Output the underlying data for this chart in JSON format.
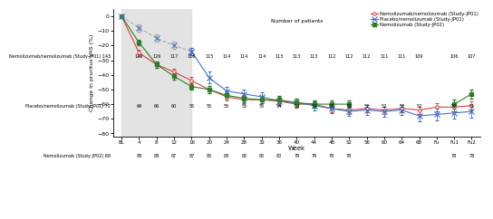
{
  "x_labels": [
    "BL",
    "4",
    "8",
    "12",
    "16",
    "20",
    "24",
    "28",
    "32",
    "36",
    "40",
    "44",
    "48",
    "52",
    "56",
    "60",
    "64",
    "68",
    "Fu",
    "Fu1",
    "Fu2"
  ],
  "x_numeric": [
    0,
    4,
    8,
    12,
    16,
    20,
    24,
    28,
    32,
    36,
    40,
    44,
    48,
    52,
    56,
    60,
    64,
    68,
    72,
    76,
    80
  ],
  "jp01_nemo": [
    0,
    -25,
    -33,
    -38,
    -44,
    -50,
    -55,
    -57,
    -57,
    -58,
    -60,
    -60,
    -63,
    -64,
    -63,
    -64,
    -63,
    -64,
    -62,
    -62,
    -61
  ],
  "jp01_nemo_err": [
    0.5,
    2.0,
    2.2,
    2.2,
    2.3,
    2.5,
    2.5,
    2.5,
    2.5,
    2.5,
    2.5,
    2.5,
    2.5,
    2.5,
    2.5,
    2.5,
    2.5,
    2.5,
    2.8,
    2.8,
    2.8
  ],
  "jp01_placebo": [
    0,
    -8,
    -15,
    -20,
    -24,
    -42,
    -51,
    -53,
    -55,
    -58,
    -59,
    -61,
    -63,
    -65,
    -64,
    -65,
    -64,
    -68,
    -67,
    -66,
    -65
  ],
  "jp01_placebo_err": [
    0.5,
    2.5,
    2.5,
    2.5,
    2.5,
    4.0,
    3.0,
    3.0,
    3.0,
    3.0,
    3.0,
    3.0,
    3.0,
    3.0,
    3.5,
    3.5,
    3.5,
    3.5,
    4.0,
    4.0,
    4.0
  ],
  "jp02_nemo": [
    0,
    -18,
    -33,
    -41,
    -48,
    -50,
    -54,
    -56,
    -57,
    -57,
    -59,
    -60,
    -60,
    -60,
    null,
    null,
    null,
    null,
    null,
    -60,
    -53
  ],
  "jp02_nemo_err": [
    0.5,
    2.0,
    2.0,
    2.0,
    2.2,
    2.5,
    2.5,
    2.5,
    2.5,
    2.5,
    2.5,
    2.5,
    2.5,
    2.5,
    null,
    null,
    null,
    null,
    null,
    3.0,
    3.0
  ],
  "placebo_dashed_y": [
    0,
    -8,
    -15,
    -20,
    -24
  ],
  "placebo_dashed_err": [
    0.5,
    2.5,
    2.5,
    2.5,
    2.5
  ],
  "placebo_dashed_x": [
    0,
    4,
    8,
    12,
    16
  ],
  "shaded_region": [
    0,
    16
  ],
  "color_jp01_nemo": "#d94040",
  "color_jp01_placebo": "#4472c4",
  "color_jp02_nemo": "#2e7d2e",
  "color_placebo_dashed": "#aaaaaa",
  "ylabel": "Change in pruritus VAS (%)",
  "xlabel": "Week",
  "ylim": [
    -82,
    5
  ],
  "yticks": [
    0,
    -10,
    -20,
    -30,
    -40,
    -50,
    -60,
    -70,
    -80
  ],
  "table_header": "Number of patients",
  "table_row1_label": "Nemolizumab/nemolizumab (Study-JP01)",
  "table_row2_label": "Placebo/nemolizumab (Study-JP01)",
  "table_row3_label": "Nemolizumab (Study-JP02)",
  "table_jp01_nemo": [
    "143",
    "136",
    "126",
    "117",
    "116",
    "115",
    "114",
    "114",
    "114",
    "113",
    "113",
    "113",
    "112",
    "112",
    "112",
    "111",
    "111",
    "109",
    "",
    "106",
    "107"
  ],
  "table_jp01_placebo": [
    "72",
    "69",
    "66",
    "60",
    "55",
    "55",
    "55",
    "55",
    "55",
    "54",
    "54",
    "54",
    "53",
    "52",
    "52",
    "52",
    "52",
    "52",
    "",
    "52",
    "51"
  ],
  "table_jp02_nemo": [
    "88",
    "88",
    "88",
    "87",
    "87",
    "85",
    "83",
    "82",
    "82",
    "80",
    "79",
    "79",
    "78",
    "78",
    "",
    "",
    "",
    "",
    "",
    "78",
    "78"
  ]
}
